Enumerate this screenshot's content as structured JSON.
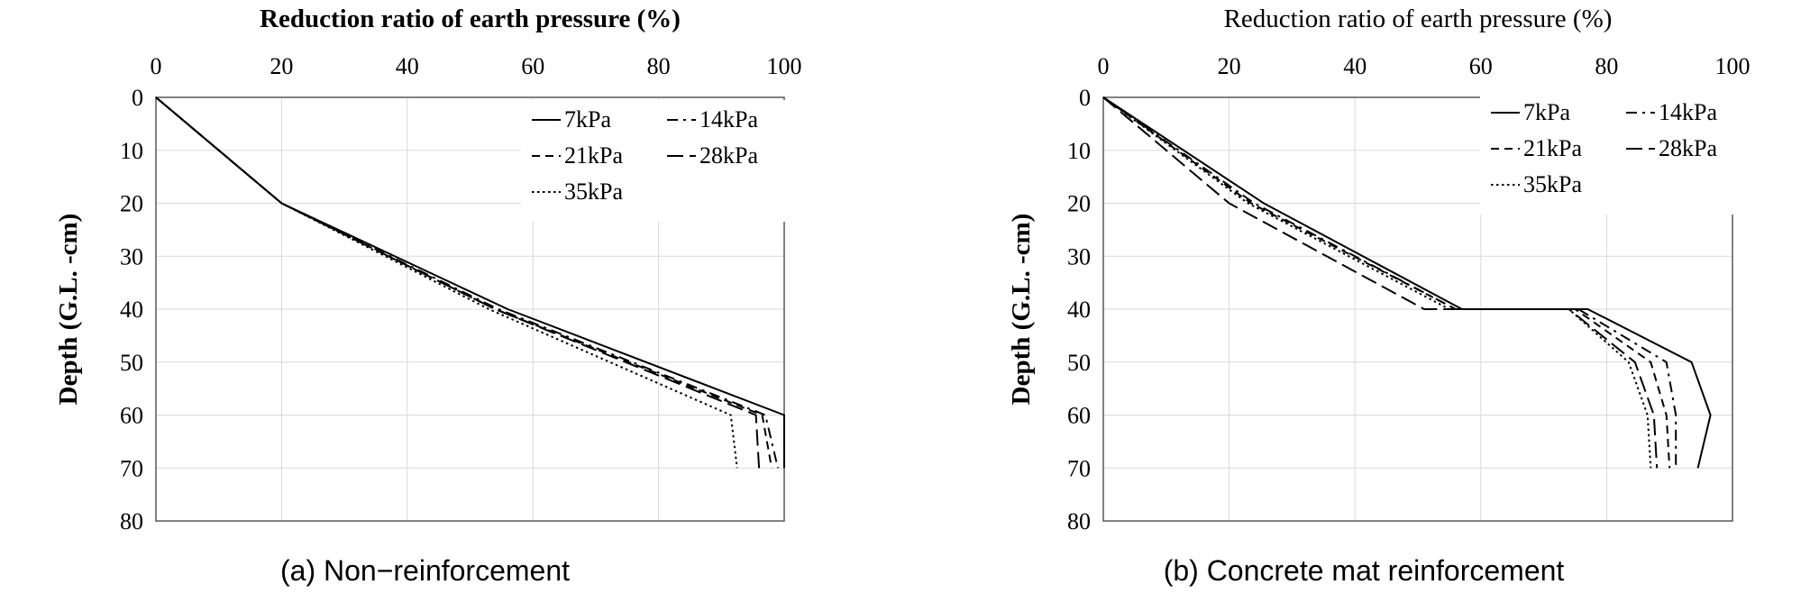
{
  "chart_data": [
    {
      "type": "line",
      "caption": "(a) Non−reinforcement",
      "xlabel": "Reduction ratio of earth pressure (%)",
      "ylabel": "Depth (G.L. -cm)",
      "xlim": [
        0,
        100
      ],
      "ylim": [
        0,
        80
      ],
      "xticks": [
        0,
        20,
        40,
        60,
        80,
        100
      ],
      "yticks": [
        0,
        10,
        20,
        30,
        40,
        50,
        60,
        70,
        80
      ],
      "x_axis_position": "top",
      "y_inverted": true,
      "grid": true,
      "legend_position": "top-right",
      "series": [
        {
          "name": "7kPa",
          "x": [
            0,
            20,
            56,
            100,
            100
          ],
          "y": [
            0,
            20,
            40,
            60,
            70
          ],
          "style": "solid"
        },
        {
          "name": "14kPa",
          "x": [
            0,
            20,
            54.5,
            97,
            99
          ],
          "y": [
            0,
            20,
            40,
            60,
            70
          ],
          "style": "dashdot"
        },
        {
          "name": "21kPa",
          "x": [
            0,
            20,
            54,
            96.5,
            98
          ],
          "y": [
            0,
            20,
            40,
            60,
            70
          ],
          "style": "dashed"
        },
        {
          "name": "28kPa",
          "x": [
            0,
            20,
            54,
            95.5,
            96
          ],
          "y": [
            0,
            20,
            40,
            60,
            70
          ],
          "style": "longdash"
        },
        {
          "name": "35kPa",
          "x": [
            0,
            20,
            53,
            91.5,
            92.5
          ],
          "y": [
            0,
            20,
            40,
            60,
            70
          ],
          "style": "dotted"
        }
      ]
    },
    {
      "type": "line",
      "caption": "(b) Concrete mat reinforcement",
      "xlabel": "Reduction ratio of earth pressure (%)",
      "ylabel": "Depth (G.L. -cm)",
      "xlim": [
        0,
        100
      ],
      "ylim": [
        0,
        80
      ],
      "xticks": [
        0,
        20,
        40,
        60,
        80,
        100
      ],
      "yticks": [
        0,
        10,
        20,
        30,
        40,
        50,
        60,
        70,
        80
      ],
      "x_axis_position": "top",
      "y_inverted": true,
      "grid": true,
      "legend_position": "top-right",
      "series": [
        {
          "name": "7kPa",
          "x": [
            0,
            25.5,
            57,
            77,
            93.5,
            96.5,
            94.5
          ],
          "y": [
            0,
            20,
            40,
            40,
            50,
            60,
            70
          ],
          "style": "solid"
        },
        {
          "name": "14kPa",
          "x": [
            0,
            24,
            56,
            75.5,
            89.5,
            91,
            91
          ],
          "y": [
            0,
            20,
            40,
            40,
            50,
            60,
            70
          ],
          "style": "dashdot"
        },
        {
          "name": "21kPa",
          "x": [
            0,
            23.5,
            56,
            75,
            87,
            89.5,
            90
          ],
          "y": [
            0,
            20,
            40,
            40,
            50,
            60,
            70
          ],
          "style": "dashed"
        },
        {
          "name": "28kPa",
          "x": [
            0,
            20,
            51,
            74,
            84.5,
            87.5,
            88
          ],
          "y": [
            0,
            20,
            40,
            40,
            50,
            60,
            70
          ],
          "style": "longdash"
        },
        {
          "name": "35kPa",
          "x": [
            0,
            23,
            55,
            74,
            83.5,
            86.5,
            87
          ],
          "y": [
            0,
            20,
            40,
            40,
            50,
            60,
            70
          ],
          "style": "dotted"
        }
      ]
    }
  ]
}
